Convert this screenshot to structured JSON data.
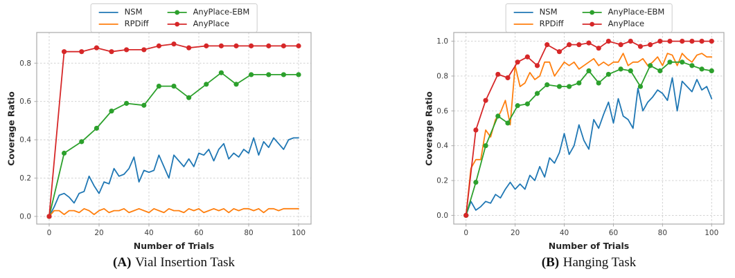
{
  "figure": {
    "background": "#ffffff",
    "grid_color": "#cccccc",
    "spine_color": "#aaaaaa",
    "tick_label_color": "#3d3d3d",
    "panels": [
      {
        "caption_prefix": "(A)",
        "caption_text": "Vial Insertion Task",
        "xlabel": "Number of Trials",
        "ylabel": "Coverage Ratio"
      },
      {
        "caption_prefix": "(B)",
        "caption_text": "Hanging Task",
        "xlabel": "Number of Trials",
        "ylabel": "Coverage Ratio"
      }
    ],
    "legend_labels": [
      "NSM",
      "RPDiff",
      "AnyPlace-EBM",
      "AnyPlace"
    ],
    "series_colors": {
      "NSM": "#1f77b4",
      "RPDiff": "#ff7f0e",
      "AnyPlace-EBM": "#2ca02c",
      "AnyPlace": "#d62728"
    }
  },
  "chart_data": [
    {
      "type": "line",
      "title": "(A) Vial Insertion Task",
      "xlabel": "Number of Trials",
      "ylabel": "Coverage Ratio",
      "xlim": [
        -5,
        105
      ],
      "ylim": [
        -0.04,
        0.96
      ],
      "x_ticks": [
        0,
        20,
        40,
        60,
        80,
        100
      ],
      "y_ticks": [
        0.0,
        0.2,
        0.4,
        0.6,
        0.8
      ],
      "grid": true,
      "legend_position": "upper center outside",
      "series": [
        {
          "name": "NSM",
          "color": "#1f77b4",
          "marker": "none",
          "x": [
            0,
            2,
            4,
            6,
            8,
            10,
            12,
            14,
            16,
            18,
            20,
            22,
            24,
            26,
            28,
            30,
            32,
            34,
            36,
            38,
            40,
            42,
            44,
            46,
            48,
            50,
            52,
            54,
            56,
            58,
            60,
            62,
            64,
            66,
            68,
            70,
            72,
            74,
            76,
            78,
            80,
            82,
            84,
            86,
            88,
            90,
            92,
            94,
            96,
            98,
            100
          ],
          "y": [
            0.0,
            0.05,
            0.11,
            0.12,
            0.1,
            0.07,
            0.12,
            0.13,
            0.21,
            0.16,
            0.12,
            0.18,
            0.17,
            0.25,
            0.21,
            0.22,
            0.25,
            0.31,
            0.18,
            0.24,
            0.23,
            0.24,
            0.32,
            0.26,
            0.2,
            0.32,
            0.29,
            0.26,
            0.3,
            0.26,
            0.33,
            0.32,
            0.35,
            0.29,
            0.35,
            0.38,
            0.3,
            0.33,
            0.31,
            0.35,
            0.33,
            0.41,
            0.32,
            0.39,
            0.36,
            0.41,
            0.38,
            0.35,
            0.4,
            0.41,
            0.41
          ]
        },
        {
          "name": "RPDiff",
          "color": "#ff7f0e",
          "marker": "none",
          "x": [
            0,
            2,
            4,
            6,
            8,
            10,
            12,
            14,
            16,
            18,
            20,
            22,
            24,
            26,
            28,
            30,
            32,
            34,
            36,
            38,
            40,
            42,
            44,
            46,
            48,
            50,
            52,
            54,
            56,
            58,
            60,
            62,
            64,
            66,
            68,
            70,
            72,
            74,
            76,
            78,
            80,
            82,
            84,
            86,
            88,
            90,
            92,
            94,
            96,
            98,
            100
          ],
          "y": [
            0.0,
            0.03,
            0.03,
            0.01,
            0.03,
            0.03,
            0.02,
            0.04,
            0.03,
            0.01,
            0.03,
            0.04,
            0.02,
            0.03,
            0.03,
            0.04,
            0.02,
            0.03,
            0.04,
            0.03,
            0.02,
            0.04,
            0.03,
            0.02,
            0.04,
            0.03,
            0.03,
            0.02,
            0.04,
            0.03,
            0.04,
            0.02,
            0.03,
            0.04,
            0.03,
            0.04,
            0.02,
            0.04,
            0.03,
            0.04,
            0.04,
            0.03,
            0.04,
            0.02,
            0.04,
            0.04,
            0.03,
            0.04,
            0.04,
            0.04,
            0.04
          ]
        },
        {
          "name": "AnyPlace-EBM",
          "color": "#2ca02c",
          "marker": "circle",
          "x": [
            0,
            6,
            13,
            19,
            25,
            31,
            38,
            44,
            50,
            56,
            63,
            69,
            75,
            81,
            88,
            94,
            100
          ],
          "y": [
            0.0,
            0.33,
            0.39,
            0.46,
            0.55,
            0.59,
            0.58,
            0.68,
            0.68,
            0.62,
            0.69,
            0.75,
            0.69,
            0.74,
            0.74,
            0.74,
            0.74
          ]
        },
        {
          "name": "AnyPlace",
          "color": "#d62728",
          "marker": "circle",
          "x": [
            0,
            6,
            13,
            19,
            25,
            31,
            38,
            44,
            50,
            56,
            63,
            69,
            75,
            81,
            88,
            94,
            100
          ],
          "y": [
            0.0,
            0.86,
            0.86,
            0.88,
            0.86,
            0.87,
            0.87,
            0.89,
            0.9,
            0.88,
            0.89,
            0.89,
            0.89,
            0.89,
            0.89,
            0.89,
            0.89
          ]
        }
      ]
    },
    {
      "type": "line",
      "title": "(B) Hanging Task",
      "xlabel": "Number of Trials",
      "ylabel": "Coverage Ratio",
      "xlim": [
        -5,
        105
      ],
      "ylim": [
        -0.05,
        1.05
      ],
      "x_ticks": [
        0,
        20,
        40,
        60,
        80,
        100
      ],
      "y_ticks": [
        0.0,
        0.2,
        0.4,
        0.6,
        0.8,
        1.0
      ],
      "grid": true,
      "legend_position": "upper center outside",
      "series": [
        {
          "name": "NSM",
          "color": "#1f77b4",
          "marker": "none",
          "x": [
            0,
            2,
            4,
            6,
            8,
            10,
            12,
            14,
            16,
            18,
            20,
            22,
            24,
            26,
            28,
            30,
            32,
            34,
            36,
            38,
            40,
            42,
            44,
            46,
            48,
            50,
            52,
            54,
            56,
            58,
            60,
            62,
            64,
            66,
            68,
            70,
            72,
            74,
            76,
            78,
            80,
            82,
            84,
            86,
            88,
            90,
            92,
            94,
            96,
            98,
            100
          ],
          "y": [
            0.0,
            0.08,
            0.03,
            0.05,
            0.08,
            0.07,
            0.12,
            0.1,
            0.15,
            0.19,
            0.15,
            0.18,
            0.15,
            0.23,
            0.2,
            0.28,
            0.22,
            0.33,
            0.3,
            0.36,
            0.47,
            0.35,
            0.4,
            0.52,
            0.43,
            0.38,
            0.55,
            0.5,
            0.58,
            0.65,
            0.53,
            0.67,
            0.57,
            0.55,
            0.5,
            0.73,
            0.6,
            0.65,
            0.68,
            0.72,
            0.7,
            0.66,
            0.79,
            0.6,
            0.77,
            0.74,
            0.71,
            0.78,
            0.72,
            0.74,
            0.67
          ]
        },
        {
          "name": "RPDiff",
          "color": "#ff7f0e",
          "marker": "none",
          "x": [
            0,
            2,
            4,
            6,
            8,
            10,
            12,
            14,
            16,
            18,
            20,
            22,
            24,
            26,
            28,
            30,
            32,
            34,
            36,
            38,
            40,
            42,
            44,
            46,
            48,
            50,
            52,
            54,
            56,
            58,
            60,
            62,
            64,
            66,
            68,
            70,
            72,
            74,
            76,
            78,
            80,
            82,
            84,
            86,
            88,
            90,
            92,
            94,
            96,
            98,
            100
          ],
          "y": [
            0.0,
            0.27,
            0.32,
            0.32,
            0.49,
            0.45,
            0.55,
            0.59,
            0.66,
            0.52,
            0.86,
            0.74,
            0.76,
            0.82,
            0.78,
            0.8,
            0.88,
            0.88,
            0.8,
            0.84,
            0.88,
            0.86,
            0.88,
            0.84,
            0.86,
            0.88,
            0.9,
            0.86,
            0.88,
            0.86,
            0.88,
            0.88,
            0.93,
            0.86,
            0.88,
            0.88,
            0.9,
            0.86,
            0.88,
            0.91,
            0.86,
            0.93,
            0.92,
            0.86,
            0.93,
            0.9,
            0.88,
            0.92,
            0.93,
            0.91,
            0.91
          ]
        },
        {
          "name": "AnyPlace-EBM",
          "color": "#2ca02c",
          "marker": "circle",
          "x": [
            0,
            4,
            8,
            13,
            17,
            21,
            25,
            29,
            33,
            38,
            42,
            46,
            50,
            54,
            58,
            63,
            67,
            71,
            75,
            79,
            83,
            88,
            92,
            96,
            100
          ],
          "y": [
            0.0,
            0.19,
            0.4,
            0.57,
            0.53,
            0.63,
            0.64,
            0.7,
            0.75,
            0.74,
            0.74,
            0.76,
            0.83,
            0.76,
            0.81,
            0.84,
            0.83,
            0.74,
            0.86,
            0.83,
            0.88,
            0.88,
            0.86,
            0.84,
            0.83
          ]
        },
        {
          "name": "AnyPlace",
          "color": "#d62728",
          "marker": "circle",
          "x": [
            0,
            4,
            8,
            13,
            17,
            21,
            25,
            29,
            33,
            38,
            42,
            46,
            50,
            54,
            58,
            63,
            67,
            71,
            75,
            79,
            83,
            88,
            92,
            96,
            100
          ],
          "y": [
            0.0,
            0.49,
            0.66,
            0.81,
            0.79,
            0.88,
            0.91,
            0.86,
            0.98,
            0.94,
            0.98,
            0.98,
            0.99,
            0.96,
            1.0,
            0.98,
            1.0,
            0.97,
            0.98,
            1.0,
            1.0,
            1.0,
            1.0,
            1.0,
            1.0
          ]
        }
      ]
    }
  ]
}
